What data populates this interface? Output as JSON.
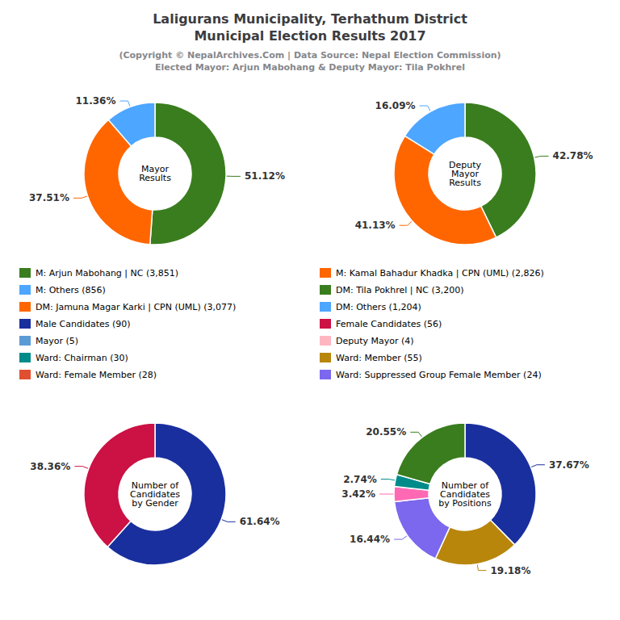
{
  "chart_data": [
    {
      "type": "legend",
      "title": "Laligurans Municipality, Terhathum District\nMunicipal Election Results 2017",
      "subtitle": "(Copyright © NepalArchives.Com | Data Source: Nepal Election Commission)\nElected Mayor: Arjun Mabohang & Deputy Mayor: Tila Pokhrel",
      "series": [
        {
          "name": "M: Arjun Mabohang | NC (3,851)",
          "color": "#3A7D1E"
        },
        {
          "name": "M: Others (856)",
          "color": "#4DA6FF"
        },
        {
          "name": "DM: Jamuna Magar Karki | CPN (UML) (3,077)",
          "color": "#FF6600"
        },
        {
          "name": "Male Candidates (90)",
          "color": "#1A2F9E"
        },
        {
          "name": "Mayor (5)",
          "color": "#5B9BD5"
        },
        {
          "name": "Ward: Chairman (30)",
          "color": "#008B8B"
        },
        {
          "name": "Ward: Female Member (28)",
          "color": "#E05030"
        },
        {
          "name": "M: Kamal Bahadur Khadka | CPN (UML) (2,826)",
          "color": "#FF6600"
        },
        {
          "name": "DM: Tila Pokhrel | NC (3,200)",
          "color": "#3A7D1E"
        },
        {
          "name": "DM: Others (1,204)",
          "color": "#4DA6FF"
        },
        {
          "name": "Female Candidates (56)",
          "color": "#CC1144"
        },
        {
          "name": "Deputy Mayor (4)",
          "color": "#FFB6C1"
        },
        {
          "name": "Ward: Member (55)",
          "color": "#B8860B"
        },
        {
          "name": "Ward: Suppressed Group Female Member (24)",
          "color": "#7B68EE"
        }
      ]
    },
    {
      "type": "pie",
      "title": "Mayor\nResults",
      "values": [
        51.12,
        37.51,
        11.36
      ],
      "value_labels": [
        "51.12%",
        "37.51%",
        "11.36%"
      ],
      "colors": [
        "#3A7D1E",
        "#FF6600",
        "#4DA6FF"
      ],
      "data_labels": true
    },
    {
      "type": "pie",
      "title": "Deputy\nMayor\nResults",
      "values": [
        42.78,
        41.13,
        16.09
      ],
      "value_labels": [
        "42.78%",
        "41.13%",
        "16.09%"
      ],
      "colors": [
        "#3A7D1E",
        "#FF6600",
        "#4DA6FF"
      ],
      "data_labels": true
    },
    {
      "type": "pie",
      "title": "Number of\nCandidates\nby Gender",
      "values": [
        61.64,
        38.36
      ],
      "value_labels": [
        "61.64%",
        "38.36%"
      ],
      "colors": [
        "#1A2F9E",
        "#CC1144"
      ],
      "data_labels": true
    },
    {
      "type": "pie",
      "title": "Number of\nCandidates\nby Positions",
      "values": [
        37.67,
        19.18,
        16.44,
        3.42,
        2.74,
        20.55
      ],
      "value_labels": [
        "37.67%",
        "19.18%",
        "16.44%",
        "3.42%",
        "2.74%",
        "20.55%"
      ],
      "colors": [
        "#1A2F9E",
        "#B8860B",
        "#7B68EE",
        "#FF69B4",
        "#008B8B",
        "#3A7D1E"
      ],
      "data_labels": true
    }
  ]
}
